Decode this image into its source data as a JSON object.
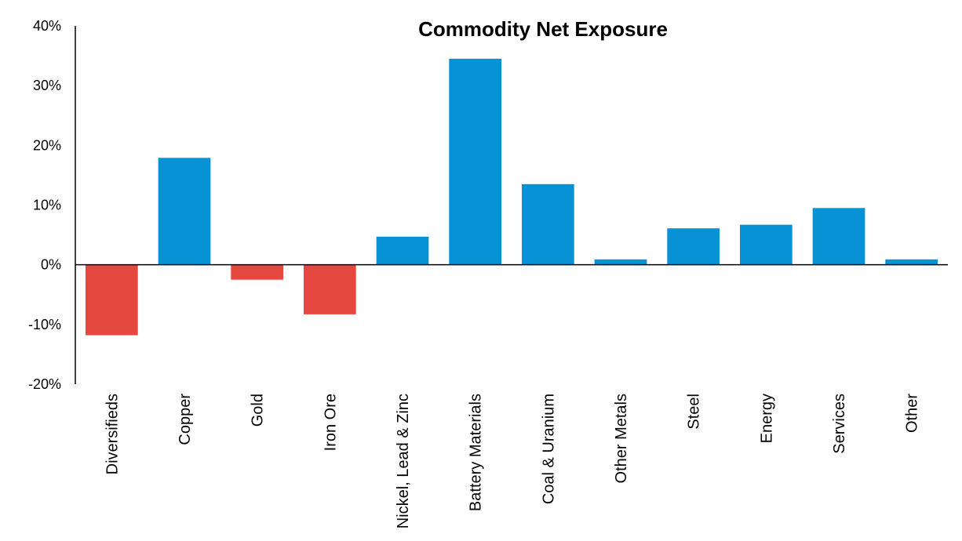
{
  "chart_data": {
    "type": "bar",
    "title": "Commodity Net Exposure",
    "xlabel": "",
    "ylabel": "",
    "categories": [
      "Diversifieds",
      "Copper",
      "Gold",
      "Iron Ore",
      "Nickel, Lead & Zinc",
      "Battery Materials",
      "Coal & Uranium",
      "Other Metals",
      "Steel",
      "Energy",
      "Services",
      "Other"
    ],
    "values": [
      -11.8,
      17.9,
      -2.5,
      -8.3,
      4.7,
      34.5,
      13.5,
      0.9,
      6.1,
      6.7,
      9.5,
      0.9
    ],
    "ylim": [
      -20,
      40
    ],
    "yticks": [
      -20,
      -10,
      0,
      10,
      20,
      30,
      40
    ],
    "ytick_labels": [
      "-20%",
      "-10%",
      "0%",
      "10%",
      "20%",
      "30%",
      "40%"
    ],
    "colors": {
      "positive": "#0792d5",
      "negative": "#e5483f"
    },
    "grid": false,
    "legend": "none"
  }
}
